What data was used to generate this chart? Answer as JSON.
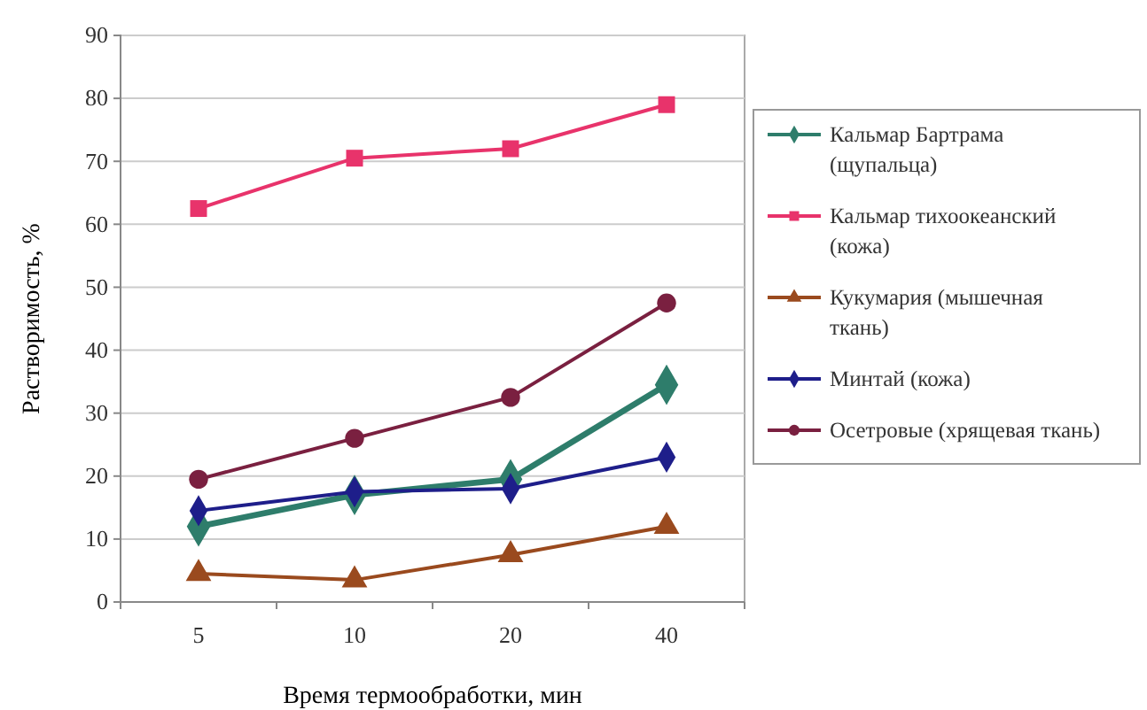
{
  "chart_data": {
    "type": "line",
    "xlabel": "Время термообработки, мин",
    "ylabel": "Растворимость, %",
    "categories": [
      "5",
      "10",
      "20",
      "40"
    ],
    "ylim": [
      0,
      90
    ],
    "yticks": [
      0,
      10,
      20,
      30,
      40,
      50,
      60,
      70,
      80,
      90
    ],
    "grid": "y",
    "legend": "right",
    "series": [
      {
        "name": "Кальмар Бартрама (щупальца)",
        "color": "#2e7d6b",
        "marker": "diamond",
        "values": [
          12,
          17,
          19.5,
          34.5
        ]
      },
      {
        "name": "Кальмар тихоокеанский (кожа)",
        "color": "#e8336b",
        "marker": "square",
        "values": [
          62.5,
          70.5,
          72,
          79
        ]
      },
      {
        "name": "Кукумария (мышечная ткань)",
        "color": "#9a4a1e",
        "marker": "triangle",
        "values": [
          4.5,
          3.5,
          7.5,
          12
        ]
      },
      {
        "name": "Минтай (кожа)",
        "color": "#1e1e8a",
        "marker": "diamond",
        "values": [
          14.5,
          17.5,
          18,
          23
        ]
      },
      {
        "name": "Осетровые (хрящевая ткань)",
        "color": "#7a2040",
        "marker": "circle",
        "values": [
          19.5,
          26,
          32.5,
          47.5
        ]
      }
    ]
  }
}
